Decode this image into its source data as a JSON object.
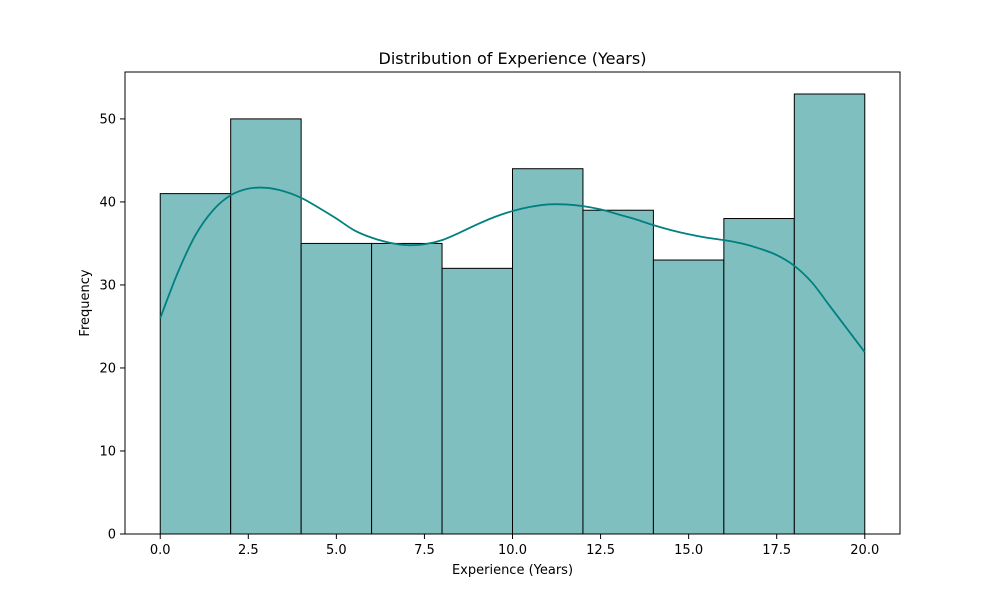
{
  "chart_data": {
    "type": "bar",
    "title": "Distribution of Experience (Years)",
    "xlabel": "Experience (Years)",
    "ylabel": "Frequency",
    "bin_edges": [
      0,
      2,
      4,
      6,
      8,
      10,
      12,
      14,
      16,
      18,
      20
    ],
    "values": [
      41,
      50,
      35,
      35,
      32,
      44,
      39,
      33,
      38,
      53
    ],
    "xlim": [
      -1,
      21
    ],
    "ylim": [
      0,
      55.65
    ],
    "xticks": [
      0,
      2.5,
      5,
      7.5,
      10,
      12.5,
      15,
      17.5,
      20
    ],
    "xtick_labels": [
      "0.0",
      "2.5",
      "5.0",
      "7.5",
      "10.0",
      "12.5",
      "15.0",
      "17.5",
      "20.0"
    ],
    "yticks": [
      0,
      10,
      20,
      30,
      40,
      50
    ],
    "ytick_labels": [
      "0",
      "10",
      "20",
      "30",
      "40",
      "50"
    ],
    "kde": {
      "x": [
        0,
        0.5,
        1,
        1.5,
        2,
        2.5,
        3,
        3.5,
        4,
        4.5,
        5,
        5.5,
        6,
        6.5,
        7,
        7.5,
        8,
        8.5,
        9,
        9.5,
        10,
        10.5,
        11,
        11.5,
        12,
        12.5,
        13,
        13.5,
        14,
        14.5,
        15,
        15.5,
        16,
        16.5,
        17,
        17.5,
        18,
        18.5,
        19,
        19.5,
        20
      ],
      "y": [
        26,
        31.5,
        36,
        39,
        40.8,
        41.6,
        41.7,
        41.3,
        40.5,
        39.3,
        38,
        36.6,
        35.7,
        35.1,
        34.8,
        34.9,
        35.4,
        36.3,
        37.3,
        38.2,
        38.9,
        39.4,
        39.7,
        39.7,
        39.5,
        39.1,
        38.5,
        37.9,
        37.2,
        36.6,
        36.1,
        35.7,
        35.4,
        35,
        34.4,
        33.6,
        32.3,
        30.3,
        27.5,
        24.7,
        21.9
      ]
    },
    "grid": false,
    "legend": "none",
    "colors": {
      "bar_fill": "#80bfbf",
      "bar_edge": "#000000",
      "kde_line": "#008080"
    }
  }
}
